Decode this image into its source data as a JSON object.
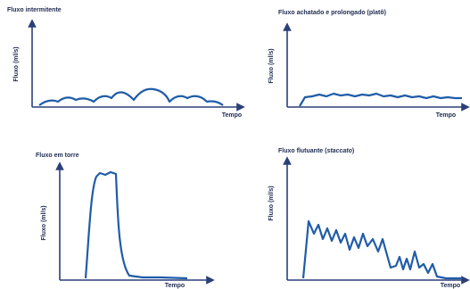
{
  "panels": [
    {
      "title": [
        "Fluxo intermitente"
      ],
      "y_label": "Fluxo (ml/s)",
      "x_label": "Tempo"
    },
    {
      "title": [
        "Fluxo achatado e prolongado (platô)"
      ],
      "y_label": "Fluxo (ml/s)",
      "x_label": "Tempo"
    },
    {
      "title": [
        "Fluxo em torre"
      ],
      "y_label": "Fluxo (ml/s)",
      "x_label": "Tempo"
    },
    {
      "title": [
        "Fluxo flutuante (",
        "staccato",
        ")"
      ],
      "y_label": "Fluxo (ml/s)",
      "x_label": "Tempo"
    }
  ]
}
